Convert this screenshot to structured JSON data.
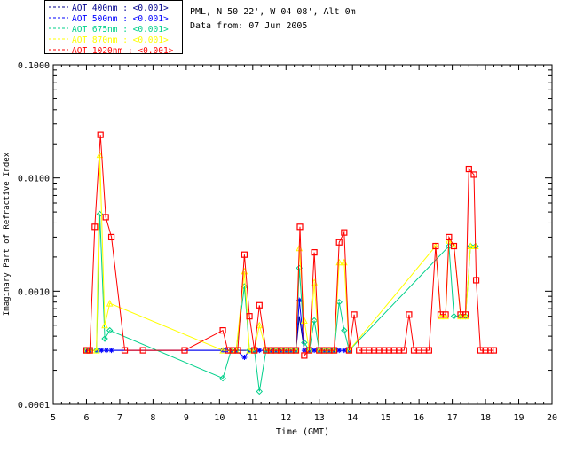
{
  "header": {
    "site_line": "PML, N 50 22', W 04 08', Alt 0m",
    "date_line": "Data from: 07 Jun 2005"
  },
  "chart_data": {
    "type": "line",
    "xlabel": "Time (GMT)",
    "ylabel": "Imaginary Part of Refractive Index",
    "xlim": [
      5,
      20
    ],
    "ylim": [
      0.0001,
      0.1
    ],
    "yscale": "log",
    "x_ticks": [
      5,
      6,
      7,
      8,
      9,
      10,
      11,
      12,
      13,
      14,
      15,
      16,
      17,
      18,
      19,
      20
    ],
    "x_tick_labels": [
      "5",
      "6",
      "7",
      "8",
      "9",
      "10",
      "11",
      "12",
      "13",
      "14",
      "15",
      "16",
      "17",
      "18",
      "19",
      "20"
    ],
    "y_ticks": [
      0.0001,
      0.001,
      0.01,
      0.1
    ],
    "y_tick_labels": [
      "0.0001",
      "0.0010",
      "0.0100",
      "0.1000"
    ],
    "legend_position": "top-left",
    "series": [
      {
        "name": "AOT  400nm : <0.001>",
        "color": "#00008b",
        "marker": "none",
        "points": [
          [
            6.0,
            0.0003
          ],
          [
            6.1,
            0.0003
          ],
          [
            6.3,
            0.0003
          ],
          [
            6.45,
            0.0003
          ],
          [
            6.6,
            0.0003
          ],
          [
            6.75,
            0.0003
          ],
          [
            10.1,
            0.0003
          ],
          [
            10.2,
            0.0003
          ],
          [
            10.35,
            0.0003
          ],
          [
            10.5,
            0.0003
          ],
          [
            10.75,
            0.0003
          ],
          [
            10.9,
            0.0003
          ],
          [
            11.05,
            0.0003
          ],
          [
            11.2,
            0.0003
          ],
          [
            11.4,
            0.0003
          ],
          [
            11.55,
            0.0003
          ],
          [
            11.7,
            0.0003
          ],
          [
            11.85,
            0.0003
          ],
          [
            12.0,
            0.0003
          ],
          [
            12.15,
            0.0003
          ],
          [
            12.3,
            0.0003
          ],
          [
            12.4,
            0.0006
          ],
          [
            12.55,
            0.0003
          ],
          [
            12.7,
            0.0003
          ],
          [
            12.85,
            0.0003
          ],
          [
            13.0,
            0.0003
          ],
          [
            13.15,
            0.0003
          ],
          [
            13.3,
            0.0003
          ],
          [
            13.45,
            0.0003
          ],
          [
            13.6,
            0.0003
          ],
          [
            13.75,
            0.0003
          ],
          [
            13.9,
            0.0003
          ]
        ]
      },
      {
        "name": "AOT  500nm : <0.001>",
        "color": "#0000ff",
        "marker": "asterisk",
        "points": [
          [
            6.0,
            0.0003
          ],
          [
            6.1,
            0.0003
          ],
          [
            6.3,
            0.0003
          ],
          [
            6.45,
            0.0003
          ],
          [
            6.6,
            0.0003
          ],
          [
            6.75,
            0.0003
          ],
          [
            10.1,
            0.0003
          ],
          [
            10.2,
            0.0003
          ],
          [
            10.35,
            0.0003
          ],
          [
            10.5,
            0.0003
          ],
          [
            10.75,
            0.00026
          ],
          [
            10.9,
            0.0003
          ],
          [
            11.05,
            0.0003
          ],
          [
            11.2,
            0.0003
          ],
          [
            11.4,
            0.0003
          ],
          [
            11.55,
            0.0003
          ],
          [
            11.7,
            0.0003
          ],
          [
            11.85,
            0.0003
          ],
          [
            12.0,
            0.0003
          ],
          [
            12.15,
            0.0003
          ],
          [
            12.3,
            0.0003
          ],
          [
            12.4,
            0.00083
          ],
          [
            12.55,
            0.0003
          ],
          [
            12.7,
            0.0003
          ],
          [
            12.85,
            0.0003
          ],
          [
            13.0,
            0.0003
          ],
          [
            13.15,
            0.0003
          ],
          [
            13.3,
            0.0003
          ],
          [
            13.45,
            0.0003
          ],
          [
            13.6,
            0.0003
          ],
          [
            13.75,
            0.0003
          ],
          [
            13.9,
            0.0003
          ]
        ]
      },
      {
        "name": "AOT  675nm : <0.001>",
        "color": "#00d08a",
        "marker": "diamond",
        "points": [
          [
            6.0,
            0.0003
          ],
          [
            6.1,
            0.0003
          ],
          [
            6.3,
            0.0003
          ],
          [
            6.4,
            0.0048
          ],
          [
            6.55,
            0.00038
          ],
          [
            6.7,
            0.00045
          ],
          [
            10.1,
            0.00017
          ],
          [
            10.35,
            0.0003
          ],
          [
            10.5,
            0.0003
          ],
          [
            10.75,
            0.0011
          ],
          [
            10.9,
            0.0003
          ],
          [
            11.05,
            0.0003
          ],
          [
            11.2,
            0.00013
          ],
          [
            11.4,
            0.0003
          ],
          [
            11.55,
            0.0003
          ],
          [
            11.7,
            0.0003
          ],
          [
            11.85,
            0.0003
          ],
          [
            12.0,
            0.0003
          ],
          [
            12.15,
            0.0003
          ],
          [
            12.3,
            0.0003
          ],
          [
            12.4,
            0.0016
          ],
          [
            12.55,
            0.00035
          ],
          [
            12.7,
            0.0003
          ],
          [
            12.85,
            0.00055
          ],
          [
            13.0,
            0.0003
          ],
          [
            13.15,
            0.0003
          ],
          [
            13.3,
            0.0003
          ],
          [
            13.45,
            0.0003
          ],
          [
            13.6,
            0.0008
          ],
          [
            13.75,
            0.00045
          ],
          [
            13.9,
            0.0003
          ],
          [
            16.9,
            0.0025
          ],
          [
            17.05,
            0.0006
          ],
          [
            17.25,
            0.0006
          ],
          [
            17.4,
            0.0006
          ],
          [
            17.55,
            0.0025
          ],
          [
            17.7,
            0.0025
          ]
        ]
      },
      {
        "name": "AOT  870nm : <0.001>",
        "color": "#ffff00",
        "marker": "triangle",
        "points": [
          [
            6.0,
            0.0003
          ],
          [
            6.1,
            0.0003
          ],
          [
            6.3,
            0.0003
          ],
          [
            6.4,
            0.016
          ],
          [
            6.55,
            0.0005
          ],
          [
            6.7,
            0.00078
          ],
          [
            10.1,
            0.0003
          ],
          [
            10.35,
            0.0003
          ],
          [
            10.5,
            0.0003
          ],
          [
            10.75,
            0.0015
          ],
          [
            10.9,
            0.0003
          ],
          [
            11.05,
            0.0003
          ],
          [
            11.2,
            0.0005
          ],
          [
            11.4,
            0.0003
          ],
          [
            11.55,
            0.0003
          ],
          [
            11.7,
            0.0003
          ],
          [
            11.85,
            0.0003
          ],
          [
            12.0,
            0.0003
          ],
          [
            12.15,
            0.0003
          ],
          [
            12.3,
            0.0003
          ],
          [
            12.4,
            0.0024
          ],
          [
            12.55,
            0.00055
          ],
          [
            12.7,
            0.0003
          ],
          [
            12.85,
            0.0012
          ],
          [
            13.0,
            0.0003
          ],
          [
            13.15,
            0.0003
          ],
          [
            13.3,
            0.0003
          ],
          [
            13.45,
            0.0003
          ],
          [
            13.6,
            0.0018
          ],
          [
            13.75,
            0.0018
          ],
          [
            13.9,
            0.0003
          ],
          [
            16.5,
            0.0025
          ],
          [
            16.65,
            0.0006
          ],
          [
            16.8,
            0.0006
          ],
          [
            16.9,
            0.0028
          ],
          [
            17.05,
            0.0025
          ],
          [
            17.25,
            0.0006
          ],
          [
            17.4,
            0.0006
          ],
          [
            17.55,
            0.0025
          ],
          [
            17.7,
            0.0025
          ]
        ]
      },
      {
        "name": "AOT 1020nm : <0.001>",
        "color": "#ff0000",
        "marker": "square",
        "points": [
          [
            6.0,
            0.0003
          ],
          [
            6.1,
            0.0003
          ],
          [
            6.25,
            0.0037
          ],
          [
            6.42,
            0.024
          ],
          [
            6.58,
            0.0045
          ],
          [
            6.75,
            0.003
          ],
          [
            7.15,
            0.0003
          ],
          [
            7.7,
            0.0003
          ],
          [
            8.95,
            0.0003
          ],
          [
            10.1,
            0.00045
          ],
          [
            10.25,
            0.0003
          ],
          [
            10.4,
            0.0003
          ],
          [
            10.55,
            0.0003
          ],
          [
            10.75,
            0.0021
          ],
          [
            10.9,
            0.0006
          ],
          [
            11.05,
            0.0003
          ],
          [
            11.2,
            0.00075
          ],
          [
            11.4,
            0.0003
          ],
          [
            11.55,
            0.0003
          ],
          [
            11.7,
            0.0003
          ],
          [
            11.85,
            0.0003
          ],
          [
            12.0,
            0.0003
          ],
          [
            12.15,
            0.0003
          ],
          [
            12.3,
            0.0003
          ],
          [
            12.42,
            0.0037
          ],
          [
            12.55,
            0.00027
          ],
          [
            12.7,
            0.0003
          ],
          [
            12.85,
            0.0022
          ],
          [
            13.0,
            0.0003
          ],
          [
            13.15,
            0.0003
          ],
          [
            13.3,
            0.0003
          ],
          [
            13.45,
            0.0003
          ],
          [
            13.6,
            0.0027
          ],
          [
            13.75,
            0.0033
          ],
          [
            13.9,
            0.0003
          ],
          [
            14.05,
            0.00062
          ],
          [
            14.2,
            0.0003
          ],
          [
            14.35,
            0.0003
          ],
          [
            14.5,
            0.0003
          ],
          [
            14.65,
            0.0003
          ],
          [
            14.8,
            0.0003
          ],
          [
            14.95,
            0.0003
          ],
          [
            15.1,
            0.0003
          ],
          [
            15.25,
            0.0003
          ],
          [
            15.4,
            0.0003
          ],
          [
            15.55,
            0.0003
          ],
          [
            15.7,
            0.00062
          ],
          [
            15.85,
            0.0003
          ],
          [
            16.0,
            0.0003
          ],
          [
            16.15,
            0.0003
          ],
          [
            16.3,
            0.0003
          ],
          [
            16.5,
            0.0025
          ],
          [
            16.65,
            0.00062
          ],
          [
            16.8,
            0.00062
          ],
          [
            16.9,
            0.003
          ],
          [
            17.05,
            0.0025
          ],
          [
            17.25,
            0.00062
          ],
          [
            17.4,
            0.00062
          ],
          [
            17.5,
            0.012
          ],
          [
            17.65,
            0.0107
          ],
          [
            17.72,
            0.00125
          ],
          [
            17.85,
            0.0003
          ],
          [
            18.0,
            0.0003
          ],
          [
            18.15,
            0.0003
          ],
          [
            18.25,
            0.0003
          ]
        ]
      }
    ]
  }
}
